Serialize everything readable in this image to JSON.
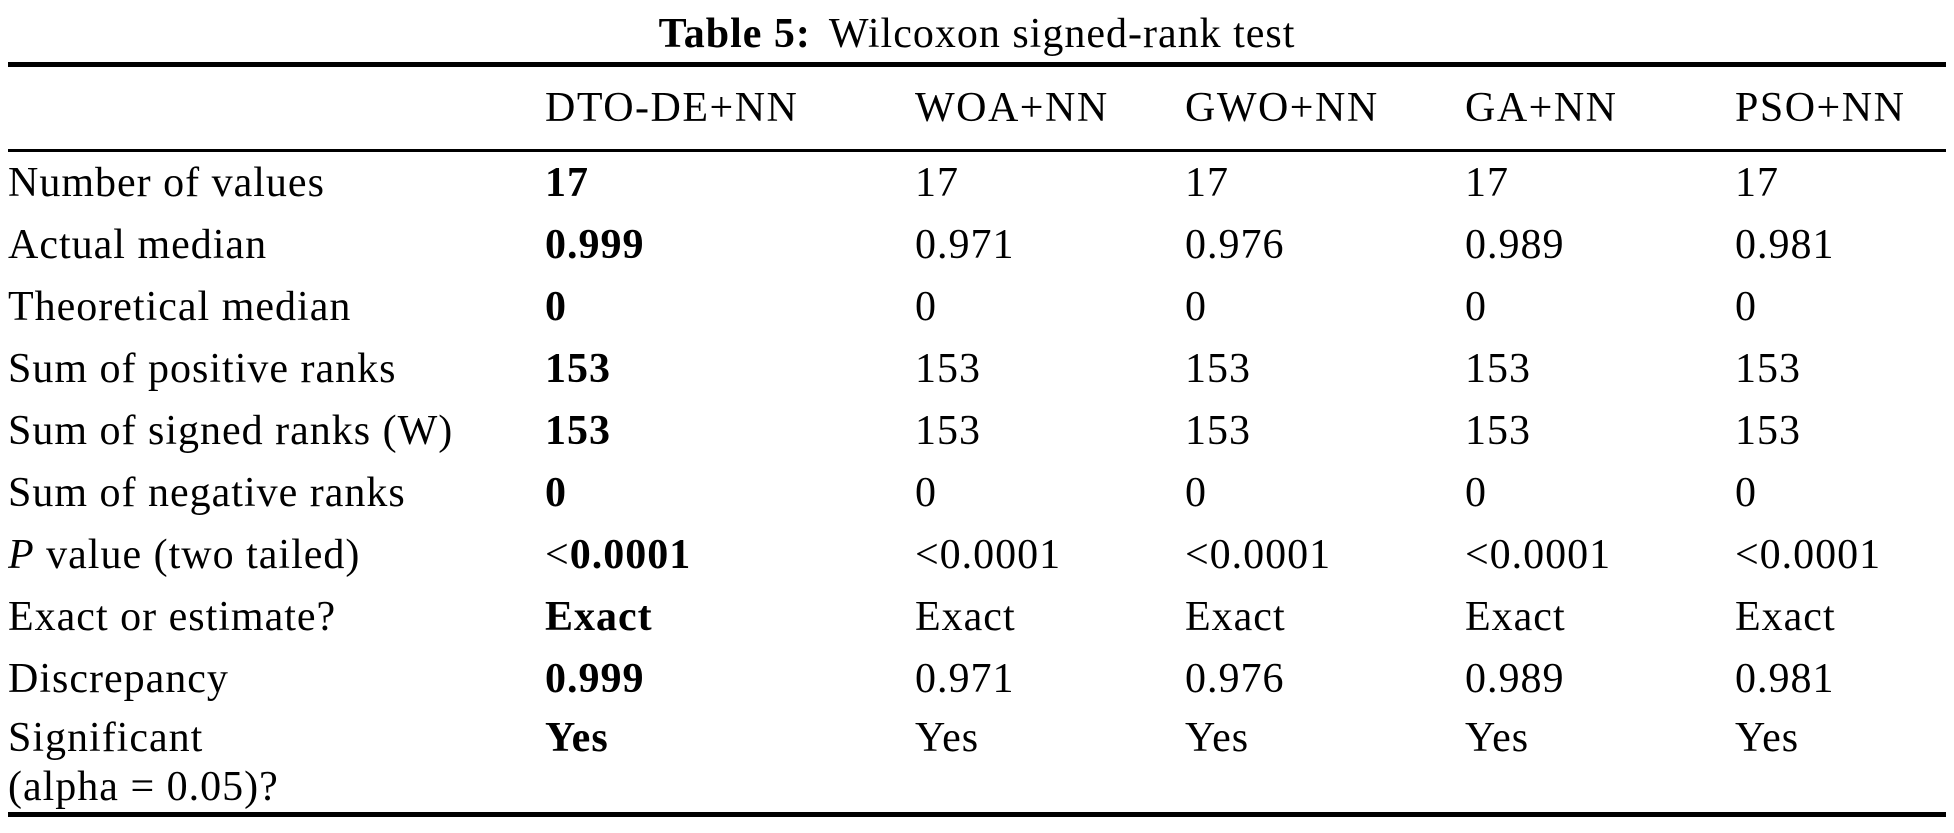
{
  "caption": {
    "label": "Table 5:",
    "text": "Wilcoxon signed-rank test"
  },
  "table": {
    "columns": [
      "",
      "DTO-DE+NN",
      "WOA+NN",
      "GWO+NN",
      "GA+NN",
      "PSO+NN"
    ],
    "rows": [
      {
        "label": "Number of values",
        "values": [
          "17",
          "17",
          "17",
          "17",
          "17"
        ]
      },
      {
        "label": "Actual median",
        "values": [
          "0.999",
          "0.971",
          "0.976",
          "0.989",
          "0.981"
        ]
      },
      {
        "label": "Theoretical median",
        "values": [
          "0",
          "0",
          "0",
          "0",
          "0"
        ]
      },
      {
        "label": "Sum of positive ranks",
        "values": [
          "153",
          "153",
          "153",
          "153",
          "153"
        ]
      },
      {
        "label": "Sum of signed ranks (W)",
        "values": [
          "153",
          "153",
          "153",
          "153",
          "153"
        ]
      },
      {
        "label": "Sum of negative ranks",
        "values": [
          "0",
          "0",
          "0",
          "0",
          "0"
        ]
      },
      {
        "label": "P value (two tailed)",
        "first": {
          "normal": "<",
          "bold": "0.0001"
        },
        "values": [
          "<0.0001",
          "<0.0001",
          "<0.0001",
          "<0.0001"
        ]
      },
      {
        "label": "Exact or estimate?",
        "values": [
          "Exact",
          "Exact",
          "Exact",
          "Exact",
          "Exact"
        ]
      },
      {
        "label": "Discrepancy",
        "values": [
          "0.999",
          "0.971",
          "0.976",
          "0.989",
          "0.981"
        ]
      },
      {
        "label": "Significant\n(alpha = 0.05)?",
        "values": [
          "Yes",
          "Yes",
          "Yes",
          "Yes",
          "Yes"
        ]
      }
    ]
  }
}
